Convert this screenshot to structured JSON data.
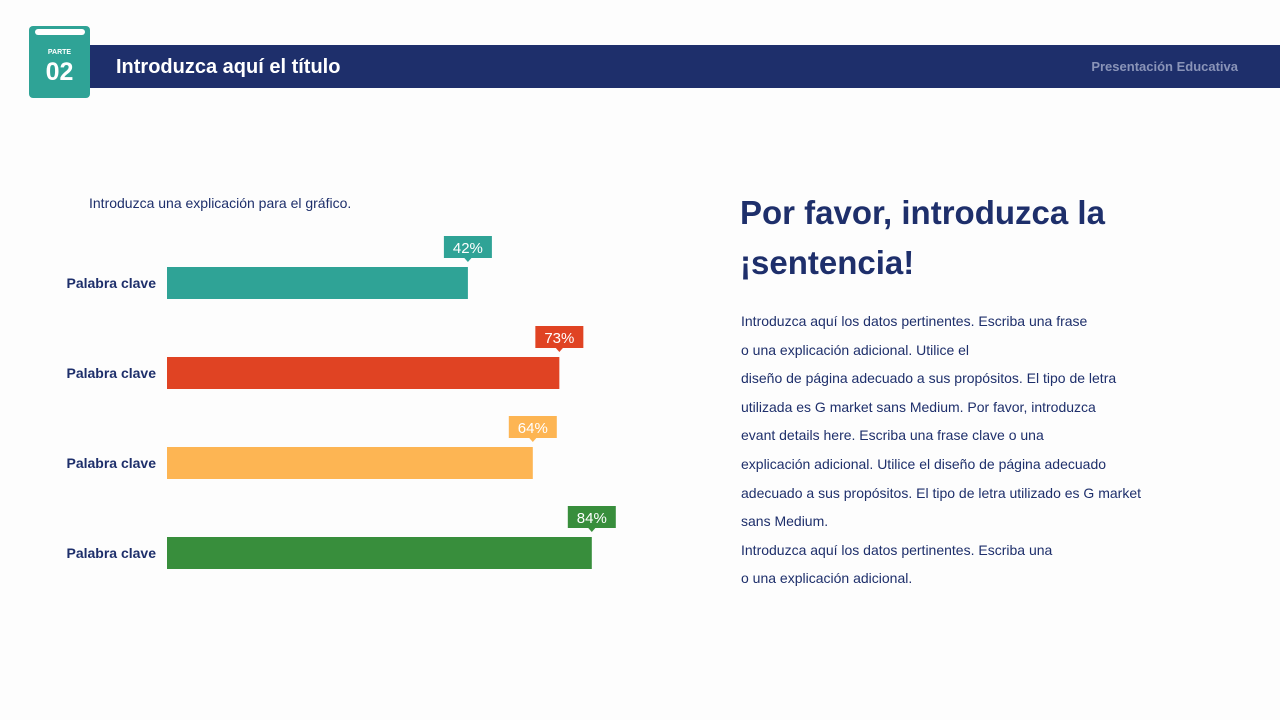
{
  "header": {
    "part_label": "PARTE",
    "part_number": "02",
    "title": "Introduzca aquí el título",
    "presentation": "Presentación Educativa"
  },
  "chart_explanation": "Introduzca una explicación para el gráfico.",
  "chart_data": {
    "type": "bar",
    "orientation": "horizontal",
    "categories": [
      "Palabra clave",
      "Palabra clave",
      "Palabra clave",
      "Palabra clave"
    ],
    "values": [
      42,
      73,
      64,
      84
    ],
    "data_labels": [
      "42%",
      "73%",
      "64%",
      "84%"
    ],
    "colors": [
      "#2fa396",
      "#e04323",
      "#fdb553",
      "#388e3c"
    ],
    "grid": false
  },
  "right": {
    "headline": "Por favor, introduzca la ¡sentencia!",
    "lines": [
      "Introduzca aquí los datos pertinentes. Escriba una frase",
      "o una explicación adicional. Utilice el",
      "diseño de página adecuado a sus propósitos. El tipo de letra",
      "utilizada es G market sans Medium. Por favor, introduzca",
      "evant details here. Escriba una frase clave o una",
      "explicación adicional. Utilice el diseño de página adecuado",
      "adecuado a sus propósitos. El tipo de letra utilizado es G market",
      "sans Medium.",
      "Introduzca aquí los datos pertinentes. Escriba una",
      "o una explicación adicional."
    ]
  },
  "colors": {
    "navy": "#1e2f6b",
    "teal": "#2fa396"
  }
}
